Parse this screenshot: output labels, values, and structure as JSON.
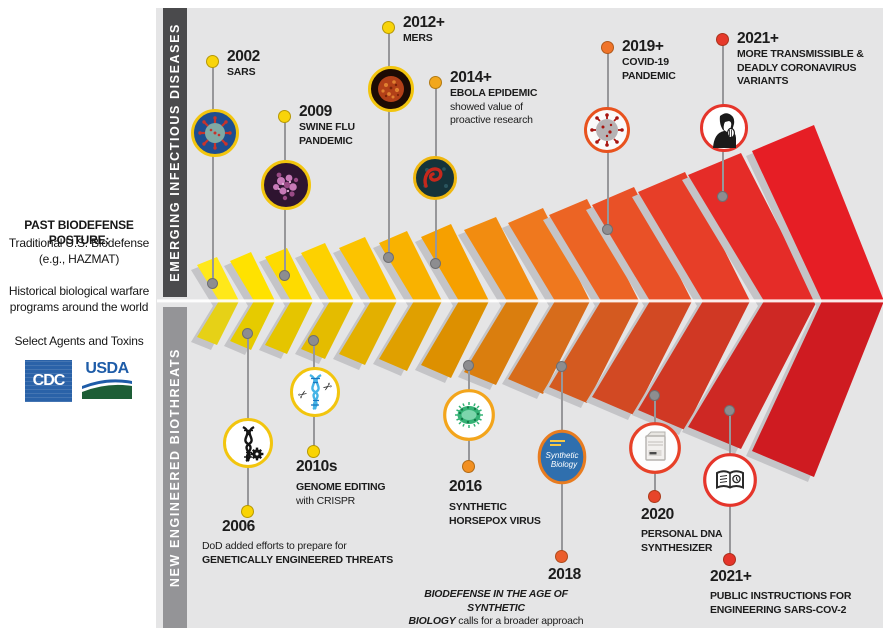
{
  "sidebar": {
    "posture_heading": "PAST BIODEFENSE POSTURE:",
    "posture_line1": "Traditional U.S. Biodefense",
    "posture_line2": "(e.g., HAZMAT)",
    "history_line1": "Historical biological warfare",
    "history_line2": "programs around the world",
    "agents_line": "Select Agents and Toxins",
    "cdc_logo": "CDC",
    "usda_logo": "USDA"
  },
  "bands": {
    "top": {
      "label": "EMERGING INFECTIOUS DISEASES",
      "color": "#4a4a4c"
    },
    "bottom": {
      "label": "NEW ENGINEERED BIOTHREATS",
      "color": "#949497"
    }
  },
  "timeline_top": [
    {
      "year": "2002",
      "l1": "SARS",
      "dot_color": "#f8d40a",
      "icon": "sars-virus-photo-icon"
    },
    {
      "year": "2009",
      "l1": "SWINE FLU",
      "l2": "PANDEMIC",
      "dot_color": "#f8d40a",
      "icon": "swine-flu-virus-photo-icon"
    },
    {
      "year": "2012+",
      "l1": "MERS",
      "dot_color": "#f8d40a",
      "icon": "mers-virus-photo-icon"
    },
    {
      "year": "2014+",
      "l1": "EBOLA EPIDEMIC",
      "l2": "showed value of",
      "l3": "proactive research",
      "dot_color": "#f2a71c",
      "icon": "ebola-virus-photo-icon"
    },
    {
      "year": "2019+",
      "l1": "COVID-19",
      "l2": "PANDEMIC",
      "dot_color": "#f0742a",
      "icon": "coronavirus-icon"
    },
    {
      "year": "2021+",
      "l1": "MORE TRANSMISSIBLE &",
      "l2": "DEADLY CORONAVIRUS",
      "l3": "VARIANTS",
      "dot_color": "#e6392b",
      "icon": "coughing-person-icon"
    }
  ],
  "timeline_bottom": [
    {
      "year": "2006",
      "l1": "DoD added efforts to prepare for",
      "l2": "GENETICALLY ENGINEERED THREATS",
      "dot_color": "#f9d403",
      "icon": "dna-gear-icon"
    },
    {
      "year": "2010s",
      "l1": "GENOME EDITING",
      "l2": "with CRISPR",
      "dot_color": "#f9d403",
      "icon": "crispr-dna-scissors-icon"
    },
    {
      "year": "2016",
      "l1": "SYNTHETIC",
      "l2": "HORSEPOX VIRUS",
      "dot_color": "#f29022",
      "icon": "horsepox-virus-icon"
    },
    {
      "year": "2018",
      "l1": "BIODEFENSE IN THE AGE OF SYNTHETIC",
      "l2_bold": "BIOLOGY",
      "l2_rest": " calls for a broader approach",
      "dot_color": "#eb5e2c",
      "icon": "synthetic-biology-book-icon"
    },
    {
      "year": "2020",
      "l1": "PERSONAL DNA",
      "l2": "SYNTHESIZER",
      "dot_color": "#e7452a",
      "icon": "dna-synthesizer-icon"
    },
    {
      "year": "2021+",
      "l1": "PUBLIC INSTRUCTIONS FOR",
      "l2": "ENGINEERING SARS-COV-2",
      "dot_color": "#e5352b",
      "icon": "open-book-icon"
    }
  ],
  "icons": {
    "book_cover_line1": "Synthetic",
    "book_cover_line2": "Biology"
  },
  "chevrons": {
    "colors": [
      "#ffe81a",
      "#ffe200",
      "#fedb00",
      "#fdd100",
      "#fcc300",
      "#f9b200",
      "#f6a000",
      "#f28c10",
      "#ef781e",
      "#ec6424",
      "#e95127",
      "#e73e28",
      "#e52c28",
      "#e61e25"
    ],
    "shadow_color": "#c4c4c7",
    "centerline_color": "#ffffff"
  }
}
